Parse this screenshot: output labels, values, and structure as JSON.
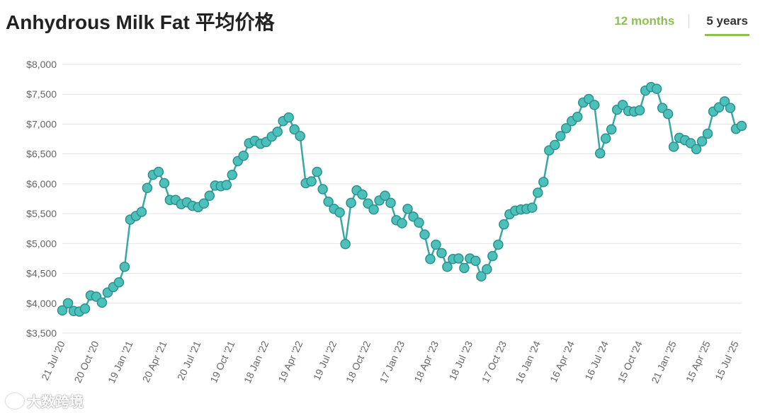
{
  "header": {
    "title": "Anhydrous Milk Fat 平均价格",
    "tabs": [
      {
        "label": "12 months",
        "active": false
      },
      {
        "label": "5 years",
        "active": true
      }
    ]
  },
  "watermark": "大数跨境",
  "colors": {
    "line": "#3aa6a6",
    "marker_fill": "#4cc1ba",
    "marker_stroke": "#2e8f8f",
    "accent": "#8cc152",
    "grid": "#e3e3e3"
  },
  "chart_data": {
    "type": "line",
    "title": "Anhydrous Milk Fat 平均价格",
    "xlabel": "",
    "ylabel": "",
    "ylim": [
      3500,
      8000
    ],
    "y_ticks": [
      3500,
      4000,
      4500,
      5000,
      5500,
      6000,
      6500,
      7000,
      7500,
      8000
    ],
    "y_tick_labels": [
      "$3,500",
      "$4,000",
      "$4,500",
      "$5,000",
      "$5,500",
      "$6,000",
      "$6,500",
      "$7,000",
      "$7,500",
      "$8,000"
    ],
    "x_tick_labels": [
      "21 Jul '20",
      "20 Oct '20",
      "19 Jan '21",
      "20 Apr '21",
      "20 Jul '21",
      "19 Oct '21",
      "18 Jan '22",
      "19 Apr '22",
      "19 Jul '22",
      "18 Oct '22",
      "17 Jan '23",
      "18 Apr '23",
      "18 Jul '23",
      "17 Oct '23",
      "16 Jan '24",
      "16 Apr '24",
      "16 Jul '24",
      "15 Oct '24",
      "21 Jan '25",
      "15 Apr '25",
      "15 Jul '25"
    ],
    "x_tick_index": [
      0,
      6,
      12,
      18,
      24,
      30,
      36,
      42,
      48,
      54,
      60,
      66,
      72,
      78,
      84,
      90,
      96,
      102,
      108,
      114,
      119
    ],
    "grid": true,
    "legend": "none",
    "series": [
      {
        "values": [
          3880,
          4000,
          3870,
          3860,
          3910,
          4130,
          4110,
          4010,
          4180,
          4270,
          4350,
          4610,
          5400,
          5460,
          5530,
          5930,
          6150,
          6200,
          6010,
          5730,
          5730,
          5660,
          5690,
          5630,
          5610,
          5670,
          5800,
          5970,
          5960,
          5980,
          6150,
          6380,
          6470,
          6680,
          6720,
          6670,
          6700,
          6790,
          6870,
          7050,
          7110,
          6910,
          6800,
          6010,
          6040,
          6200,
          5910,
          5700,
          5580,
          5520,
          4990,
          5680,
          5890,
          5820,
          5670,
          5570,
          5720,
          5800,
          5680,
          5390,
          5340,
          5580,
          5450,
          5350,
          5150,
          4740,
          4980,
          4840,
          4610,
          4740,
          4750,
          4590,
          4750,
          4710,
          4450,
          4570,
          4790,
          4980,
          5320,
          5490,
          5550,
          5570,
          5580,
          5600,
          5850,
          6030,
          6560,
          6650,
          6800,
          6930,
          7050,
          7120,
          7360,
          7420,
          7320,
          6510,
          6760,
          6910,
          7240,
          7320,
          7220,
          7210,
          7230,
          7560,
          7620,
          7590,
          7270,
          7170,
          6620,
          6770,
          6730,
          6680,
          6580,
          6710,
          6840,
          7210,
          7280,
          7380,
          7270,
          6920,
          6970
        ]
      }
    ]
  }
}
